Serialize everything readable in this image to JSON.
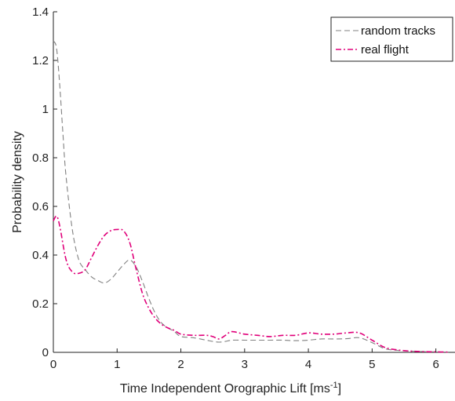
{
  "chart_data": {
    "type": "line",
    "xlabel": "Time Independent Orographic Lift [ms",
    "xlabel_sup": "-1",
    "xlabel_end": "]",
    "ylabel": "Probability density",
    "xlim": [
      0,
      6.3
    ],
    "ylim": [
      0,
      1.4
    ],
    "xticks": [
      "0",
      "1",
      "2",
      "3",
      "4",
      "5",
      "6"
    ],
    "yticks": [
      "0",
      "0.2",
      "0.4",
      "0.6",
      "0.8",
      "1",
      "1.2",
      "1.4"
    ],
    "grid": false,
    "legend_placement": "top-right",
    "series": [
      {
        "name": "random tracks",
        "color": "#808080",
        "dash": "dashed",
        "x": [
          0,
          0.05,
          0.1,
          0.15,
          0.2,
          0.3,
          0.4,
          0.5,
          0.6,
          0.7,
          0.8,
          0.9,
          1.0,
          1.1,
          1.2,
          1.3,
          1.4,
          1.5,
          1.6,
          1.7,
          1.8,
          1.9,
          2.0,
          2.2,
          2.4,
          2.5,
          2.6,
          2.7,
          2.8,
          3.0,
          3.2,
          3.4,
          3.6,
          3.8,
          4.0,
          4.2,
          4.4,
          4.6,
          4.8,
          5.0,
          5.2,
          5.4,
          5.6,
          5.8,
          6.0,
          6.2
        ],
        "y": [
          1.28,
          1.25,
          1.1,
          0.9,
          0.72,
          0.5,
          0.38,
          0.34,
          0.31,
          0.295,
          0.285,
          0.3,
          0.33,
          0.36,
          0.38,
          0.35,
          0.29,
          0.22,
          0.16,
          0.12,
          0.1,
          0.085,
          0.065,
          0.06,
          0.05,
          0.045,
          0.042,
          0.045,
          0.05,
          0.05,
          0.05,
          0.05,
          0.05,
          0.048,
          0.05,
          0.055,
          0.055,
          0.056,
          0.06,
          0.04,
          0.015,
          0.008,
          0.005,
          0.003,
          0.002,
          0.001
        ]
      },
      {
        "name": "real flight",
        "color": "#e0007a",
        "dash": "dashdot",
        "x": [
          0,
          0.05,
          0.1,
          0.2,
          0.3,
          0.4,
          0.5,
          0.6,
          0.7,
          0.8,
          0.9,
          1.0,
          1.1,
          1.2,
          1.3,
          1.4,
          1.5,
          1.6,
          1.7,
          1.8,
          1.9,
          2.0,
          2.2,
          2.4,
          2.5,
          2.6,
          2.7,
          2.8,
          3.0,
          3.2,
          3.4,
          3.6,
          3.8,
          4.0,
          4.2,
          4.4,
          4.6,
          4.8,
          5.0,
          5.2,
          5.4,
          5.6,
          5.8,
          6.0,
          6.2
        ],
        "y": [
          0.54,
          0.56,
          0.52,
          0.38,
          0.33,
          0.325,
          0.34,
          0.39,
          0.44,
          0.48,
          0.5,
          0.505,
          0.5,
          0.45,
          0.34,
          0.24,
          0.18,
          0.14,
          0.115,
          0.1,
          0.09,
          0.075,
          0.07,
          0.07,
          0.065,
          0.055,
          0.07,
          0.085,
          0.075,
          0.07,
          0.065,
          0.07,
          0.07,
          0.08,
          0.075,
          0.075,
          0.08,
          0.08,
          0.05,
          0.02,
          0.01,
          0.005,
          0.003,
          0.002,
          0.001
        ]
      }
    ]
  }
}
